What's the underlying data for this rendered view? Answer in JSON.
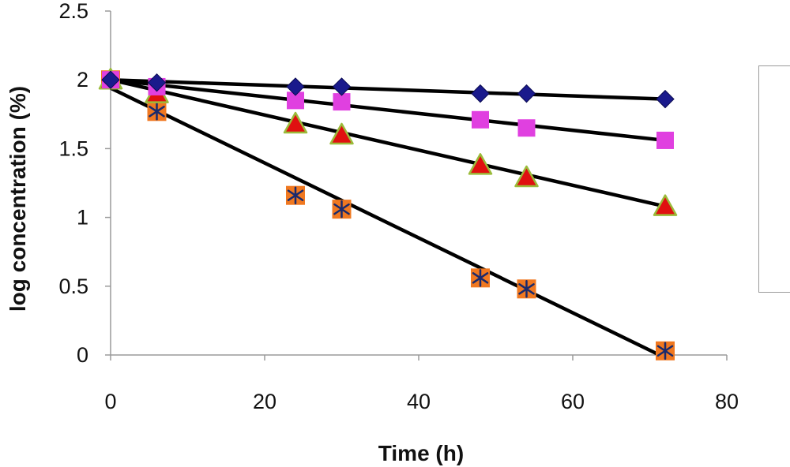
{
  "chart_data": {
    "type": "scatter",
    "title": "",
    "xlabel": "Time (h)",
    "ylabel": "log concentration (%)",
    "xlim": [
      0,
      80
    ],
    "ylim": [
      0,
      2.5
    ],
    "xticks": [
      0,
      20,
      40,
      60,
      80
    ],
    "yticks": [
      0,
      0.5,
      1,
      1.5,
      2,
      2.5
    ],
    "ytick_labels": [
      "0",
      "0.5",
      "1",
      "1.5",
      "2",
      "2.5"
    ],
    "grid": false,
    "legend_position": "right",
    "series": [
      {
        "marker": "diamond",
        "color": "#1a1a8c",
        "x": [
          0,
          6,
          24,
          30,
          48,
          54,
          72
        ],
        "y": [
          2.0,
          1.98,
          1.95,
          1.95,
          1.9,
          1.9,
          1.86
        ],
        "trendline": {
          "x": [
            0,
            72
          ],
          "y": [
            2.0,
            1.86
          ]
        }
      },
      {
        "marker": "square",
        "color": "#e040e0",
        "x": [
          0,
          6,
          24,
          30,
          48,
          54,
          72
        ],
        "y": [
          2.0,
          1.95,
          1.85,
          1.84,
          1.71,
          1.65,
          1.56
        ],
        "trendline": {
          "x": [
            0,
            72
          ],
          "y": [
            2.0,
            1.56
          ]
        }
      },
      {
        "marker": "triangle",
        "color": "#e01010",
        "edge_color": "#9bbb3a",
        "x": [
          0,
          6,
          24,
          30,
          48,
          54,
          72
        ],
        "y": [
          2.0,
          1.9,
          1.68,
          1.6,
          1.38,
          1.29,
          1.08
        ],
        "trendline": {
          "x": [
            0,
            72
          ],
          "y": [
            2.0,
            1.08
          ]
        }
      },
      {
        "marker": "star-square",
        "color": "#f07820",
        "star_color": "#1a2a6c",
        "x": [
          0,
          6,
          24,
          30,
          48,
          54,
          72
        ],
        "y": [
          2.0,
          1.77,
          1.16,
          1.06,
          0.56,
          0.48,
          0.03
        ],
        "trendline": {
          "x": [
            0,
            72
          ],
          "y": [
            1.94,
            -0.02
          ]
        }
      }
    ]
  }
}
